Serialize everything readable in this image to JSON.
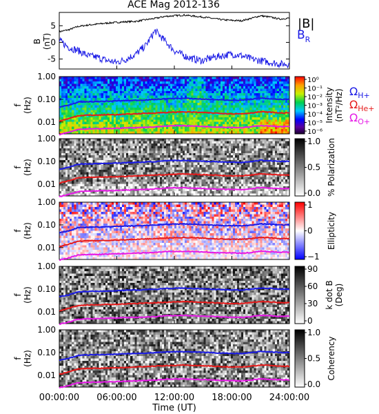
{
  "title": "ACE Mag 2012-136",
  "x_axis": {
    "label": "Time (UT)",
    "ticks": [
      "00:00:00",
      "06:00:00",
      "12:00:00",
      "18:00:00",
      "24:00:00"
    ],
    "range_hours": [
      0,
      24
    ]
  },
  "colors": {
    "B_total": "#000000",
    "B_R": "#1a1ae6",
    "omega_H": "#1a1ae6",
    "omega_He": "#e61a1a",
    "omega_O": "#e61ae6"
  },
  "panel1": {
    "ylabel": "B\n(nT)",
    "yticks": [
      "5",
      "0",
      "-5"
    ],
    "legend": [
      "|B|",
      "B_R"
    ]
  },
  "freq_ticks": [
    "1.00",
    "0.10",
    "0.01"
  ],
  "freq_ylabel": "f\n(Hz)",
  "gyro_legend": [
    "Ω_H+",
    "Ω_He+",
    "Ω_O+"
  ],
  "panels": [
    {
      "name": "intensity",
      "cbar_label": "Intensity\n(nT²/Hz)",
      "cbar_ticks": [
        "10⁰",
        "10⁻¹",
        "10⁻²",
        "10⁻³",
        "10⁻⁴",
        "10⁻⁵",
        "10⁻⁶"
      ],
      "colormap": "rainbow"
    },
    {
      "name": "polarization",
      "cbar_label": "% Polarization",
      "cbar_ticks": [
        "1.0",
        "0.5",
        "0.0"
      ],
      "colormap": "gray"
    },
    {
      "name": "ellipticity",
      "cbar_label": "Ellipticity",
      "cbar_ticks": [
        "1",
        "0",
        "−1"
      ],
      "colormap": "bwr"
    },
    {
      "name": "k-dot-b",
      "cbar_label": "k dot B\n(Deg)",
      "cbar_ticks": [
        "90",
        "60",
        "30",
        "0"
      ],
      "colormap": "gray"
    },
    {
      "name": "coherency",
      "cbar_label": "Coherency",
      "cbar_ticks": [
        "1.0",
        "0.5",
        "0.0"
      ],
      "colormap": "gray"
    }
  ],
  "chart_data": {
    "type": "line",
    "title": "ACE Mag 2012-136",
    "xlabel": "Time (UT)",
    "xlim_hours": [
      0,
      24
    ],
    "series": [
      {
        "name": "|B|",
        "unit": "nT",
        "x_hours": [
          0,
          1,
          2,
          3,
          4,
          5,
          6,
          7,
          8,
          9,
          10,
          11,
          12,
          13,
          14,
          15,
          16,
          17,
          18,
          19,
          20,
          21,
          22,
          23,
          24
        ],
        "values": [
          3.2,
          3.8,
          4.8,
          5.2,
          5.5,
          5.8,
          6.0,
          6.2,
          6.3,
          6.8,
          7.2,
          7.8,
          8.0,
          8.2,
          7.9,
          7.6,
          7.2,
          6.8,
          6.6,
          6.5,
          7.2,
          8.0,
          7.6,
          7.0,
          7.3
        ]
      },
      {
        "name": "B_R",
        "unit": "nT",
        "x_hours": [
          0,
          1,
          2,
          3,
          4,
          5,
          6,
          7,
          8,
          9,
          10,
          11,
          12,
          13,
          14,
          15,
          16,
          17,
          18,
          19,
          20,
          21,
          22,
          23,
          24
        ],
        "values": [
          0.5,
          -1.5,
          -2.5,
          -4.0,
          -4.5,
          -5.5,
          -6.0,
          -5.0,
          -3.5,
          -1.0,
          3.5,
          0.5,
          -2.5,
          -4.0,
          -5.0,
          -5.5,
          -4.5,
          -4.0,
          -3.5,
          -4.0,
          -5.0,
          -5.5,
          -6.0,
          -6.5,
          -6.5
        ]
      },
      {
        "name": "Ω_H+",
        "unit": "Hz",
        "x_hours": [
          0,
          1,
          2,
          3,
          4,
          5,
          6,
          7,
          8,
          9,
          10,
          11,
          12,
          13,
          14,
          15,
          16,
          17,
          18,
          19,
          20,
          21,
          22,
          23,
          24
        ],
        "values": [
          0.045,
          0.055,
          0.075,
          0.078,
          0.08,
          0.082,
          0.085,
          0.088,
          0.09,
          0.094,
          0.098,
          0.105,
          0.108,
          0.11,
          0.106,
          0.102,
          0.098,
          0.094,
          0.092,
          0.09,
          0.098,
          0.112,
          0.106,
          0.1,
          0.1
        ]
      },
      {
        "name": "Ω_He+",
        "unit": "Hz",
        "x_hours": [
          0,
          1,
          2,
          3,
          4,
          5,
          6,
          7,
          8,
          9,
          10,
          11,
          12,
          13,
          14,
          15,
          16,
          17,
          18,
          19,
          20,
          21,
          22,
          23,
          24
        ],
        "values": [
          0.011,
          0.014,
          0.019,
          0.02,
          0.02,
          0.021,
          0.021,
          0.022,
          0.023,
          0.024,
          0.025,
          0.026,
          0.027,
          0.028,
          0.027,
          0.026,
          0.025,
          0.024,
          0.023,
          0.023,
          0.025,
          0.028,
          0.027,
          0.025,
          0.025
        ]
      },
      {
        "name": "Ω_O+",
        "unit": "Hz",
        "x_hours": [
          0,
          1,
          2,
          3,
          4,
          5,
          6,
          7,
          8,
          9,
          10,
          11,
          12,
          13,
          14,
          15,
          16,
          17,
          18,
          19,
          20,
          21,
          22,
          23,
          24
        ],
        "values": [
          0.0028,
          0.0035,
          0.0047,
          0.0049,
          0.005,
          0.0051,
          0.0053,
          0.0055,
          0.0056,
          0.0059,
          0.0061,
          0.0066,
          0.0068,
          0.0069,
          0.0066,
          0.0064,
          0.0061,
          0.0059,
          0.0058,
          0.0056,
          0.0061,
          0.007,
          0.0066,
          0.0063,
          0.0063
        ]
      }
    ]
  }
}
